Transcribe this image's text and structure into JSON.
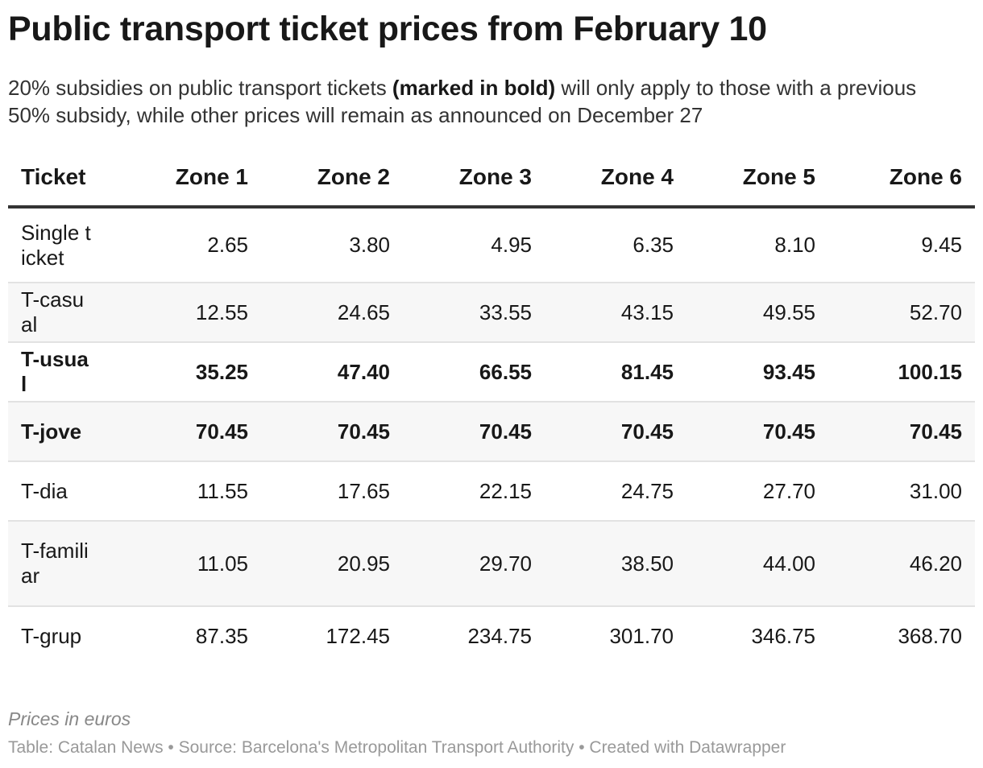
{
  "chart_data": {
    "type": "table",
    "title": "Public transport ticket prices from February 10",
    "subtitle": {
      "before": "20% subsidies on public transport tickets ",
      "bold": "(marked in bold)",
      "after": " will only apply to those with a previous 50% subsidy, while other prices will remain as announced on December 27"
    },
    "columns": [
      "Ticket",
      "Zone 1",
      "Zone 2",
      "Zone 3",
      "Zone 4",
      "Zone 5",
      "Zone 6"
    ],
    "rows": [
      {
        "ticket": "Single ticket",
        "bold": false,
        "values": [
          "2.65",
          "3.80",
          "4.95",
          "6.35",
          "8.10",
          "9.45"
        ]
      },
      {
        "ticket": "T-casual",
        "bold": false,
        "values": [
          "12.55",
          "24.65",
          "33.55",
          "43.15",
          "49.55",
          "52.70"
        ]
      },
      {
        "ticket": "T-usual",
        "bold": true,
        "values": [
          "35.25",
          "47.40",
          "66.55",
          "81.45",
          "93.45",
          "100.15"
        ]
      },
      {
        "ticket": "T-jove",
        "bold": true,
        "values": [
          "70.45",
          "70.45",
          "70.45",
          "70.45",
          "70.45",
          "70.45"
        ]
      },
      {
        "ticket": "T-dia",
        "bold": false,
        "values": [
          "11.55",
          "17.65",
          "22.15",
          "24.75",
          "27.70",
          "31.00"
        ]
      },
      {
        "ticket": "T-familiar",
        "bold": false,
        "values": [
          "11.05",
          "20.95",
          "29.70",
          "38.50",
          "44.00",
          "46.20"
        ]
      },
      {
        "ticket": "T-grup",
        "bold": false,
        "values": [
          "87.35",
          "172.45",
          "234.75",
          "301.70",
          "346.75",
          "368.70"
        ]
      }
    ],
    "notes": "Prices in euros",
    "source": "Table: Catalan News • Source: Barcelona's Metropolitan Transport Authority • Created with Datawrapper",
    "colors": {
      "text": "#181818",
      "header_rule": "#333333",
      "row_stripe": "#f7f7f7",
      "row_rule": "#e2e2e2",
      "footnote": "#888888"
    }
  }
}
